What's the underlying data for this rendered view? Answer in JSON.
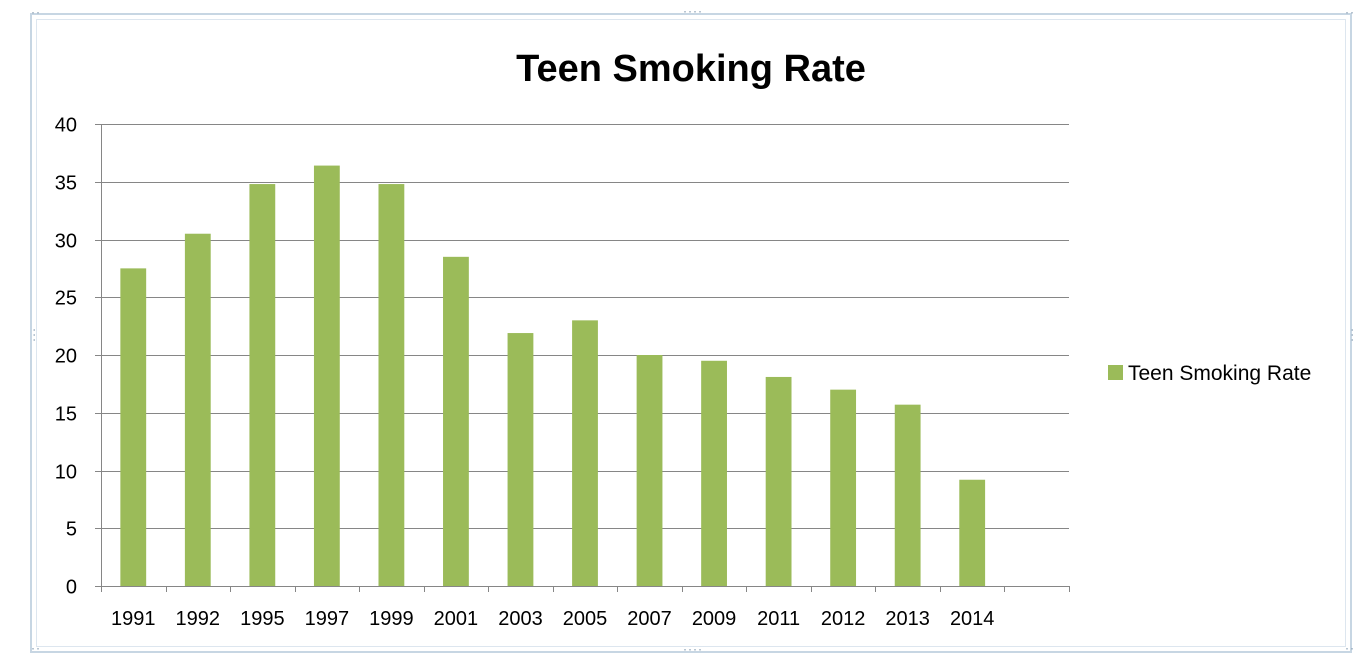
{
  "chart_data": {
    "type": "bar",
    "title": "Teen Smoking Rate",
    "xlabel": "",
    "ylabel": "",
    "categories": [
      "1991",
      "1992",
      "1995",
      "1997",
      "1999",
      "2001",
      "2003",
      "2005",
      "2007",
      "2009",
      "2011",
      "2012",
      "2013",
      "2014",
      ""
    ],
    "series": [
      {
        "name": "Teen Smoking Rate",
        "color": "#9bbb59",
        "values": [
          27.5,
          30.5,
          34.8,
          36.4,
          34.8,
          28.5,
          21.9,
          23.0,
          20.0,
          19.5,
          18.1,
          17.0,
          15.7,
          9.2,
          null
        ]
      }
    ],
    "ylim": [
      0,
      40
    ],
    "yticks": [
      0,
      5,
      10,
      15,
      20,
      25,
      30,
      35,
      40
    ],
    "grid": true,
    "gridColor": "#868686",
    "legend": "right"
  }
}
